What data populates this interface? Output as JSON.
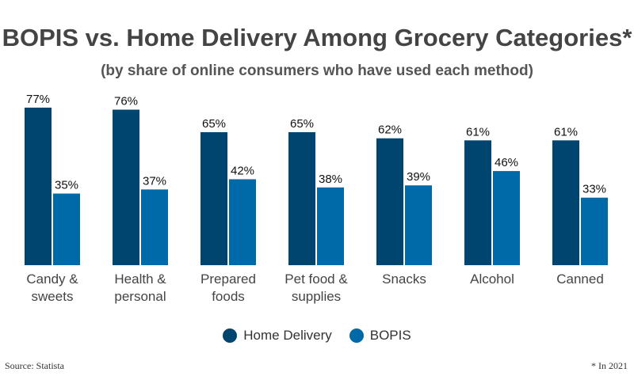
{
  "chart_data": {
    "type": "bar",
    "title": "BOPIS vs. Home Delivery Among Grocery Categories*",
    "subtitle": "(by share of online consumers who have used each method)",
    "categories": [
      [
        "Candy &",
        "sweets"
      ],
      [
        "Health &",
        "personal"
      ],
      [
        "Prepared",
        "foods"
      ],
      [
        "Pet food &",
        "supplies"
      ],
      [
        "Snacks"
      ],
      [
        "Alcohol"
      ],
      [
        "Canned"
      ]
    ],
    "series": [
      {
        "name": "Home Delivery",
        "color": "#004570",
        "values": [
          77,
          76,
          65,
          65,
          62,
          61,
          61
        ]
      },
      {
        "name": "BOPIS",
        "color": "#0069a8",
        "values": [
          35,
          37,
          42,
          38,
          39,
          46,
          33
        ]
      }
    ],
    "value_suffix": "%",
    "ylim": [
      0,
      100
    ],
    "grid": false,
    "legend_placement": "bottom"
  },
  "source": "Source: Statista",
  "note": "* In 2021"
}
